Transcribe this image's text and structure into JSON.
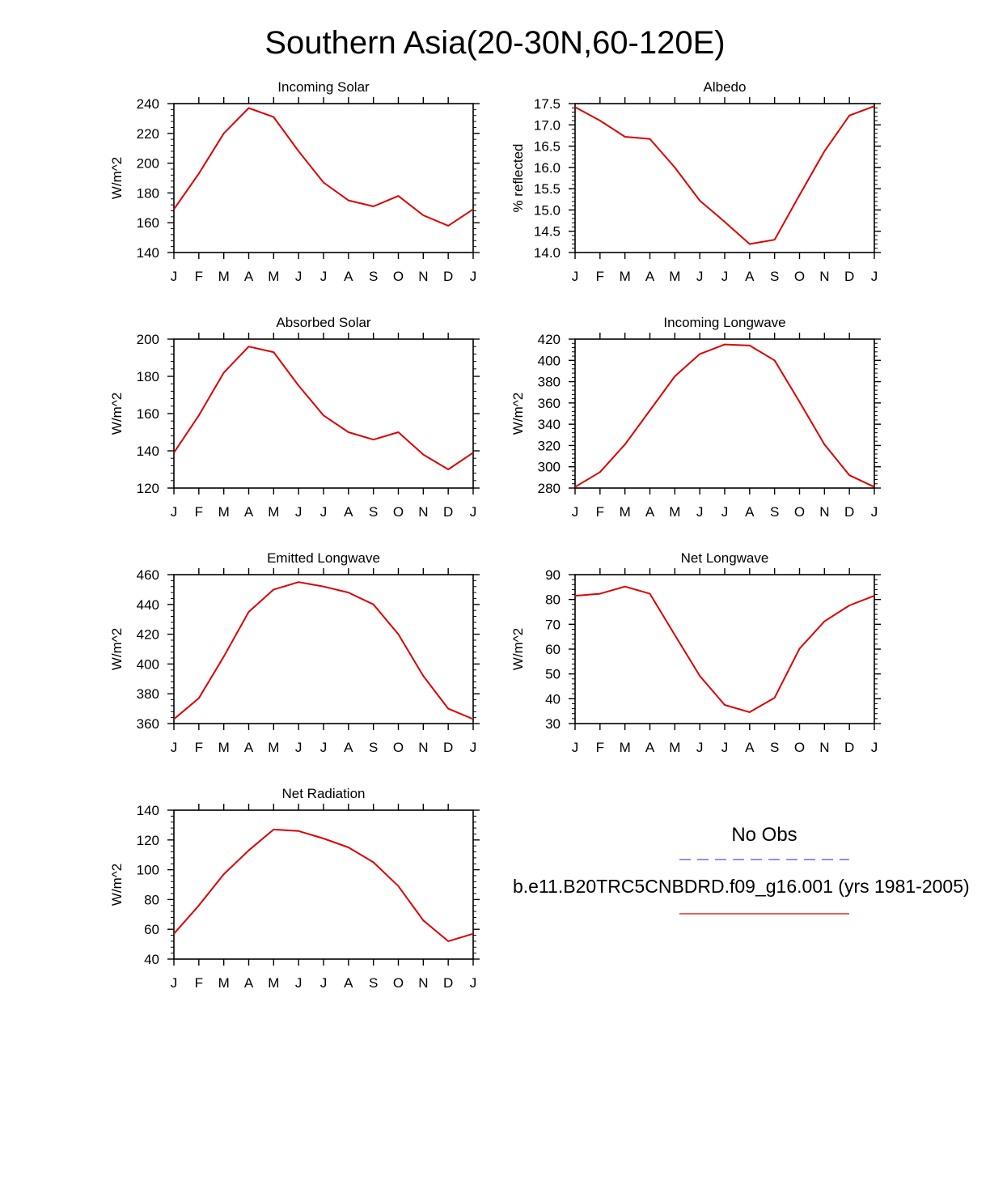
{
  "page_title": "Southern Asia(20-30N,60-120E)",
  "legend": {
    "obs_label": "No Obs",
    "obs_color": "#4a4aff",
    "model_label": "b.e11.B20TRC5CNBDRD.f09_g16.001 (yrs 1981-2005)",
    "model_color": "#dd0000"
  },
  "chart_data": [
    {
      "type": "line",
      "title": "Incoming Solar",
      "ylabel": "W/m^2",
      "xlabel": "",
      "categories": [
        "J",
        "F",
        "M",
        "A",
        "M",
        "J",
        "J",
        "A",
        "S",
        "O",
        "N",
        "D",
        "J"
      ],
      "ylim": [
        140,
        240
      ],
      "yticks": [
        "140",
        "160",
        "180",
        "200",
        "220",
        "240"
      ],
      "series": [
        {
          "name": "b.e11.B20TRC5CNBDRD.f09_g16.001",
          "values": [
            169,
            193,
            220,
            237,
            231,
            208,
            187,
            175,
            171,
            178,
            165,
            158,
            169
          ]
        }
      ]
    },
    {
      "type": "line",
      "title": "Albedo",
      "ylabel": "% reflected",
      "xlabel": "",
      "categories": [
        "J",
        "F",
        "M",
        "A",
        "M",
        "J",
        "J",
        "A",
        "S",
        "O",
        "N",
        "D",
        "J"
      ],
      "ylim": [
        14.0,
        17.5
      ],
      "yticks": [
        "14.0",
        "14.5",
        "15.0",
        "15.5",
        "16.0",
        "16.5",
        "17.0",
        "17.5"
      ],
      "series": [
        {
          "name": "b.e11.B20TRC5CNBDRD.f09_g16.001",
          "values": [
            17.42,
            17.1,
            16.72,
            16.67,
            16.0,
            15.22,
            14.72,
            14.2,
            14.3,
            15.35,
            16.38,
            17.22,
            17.44
          ]
        }
      ]
    },
    {
      "type": "line",
      "title": "Absorbed Solar",
      "ylabel": "W/m^2",
      "xlabel": "",
      "categories": [
        "J",
        "F",
        "M",
        "A",
        "M",
        "J",
        "J",
        "A",
        "S",
        "O",
        "N",
        "D",
        "J"
      ],
      "ylim": [
        120,
        200
      ],
      "yticks": [
        "120",
        "140",
        "160",
        "180",
        "200"
      ],
      "series": [
        {
          "name": "b.e11.B20TRC5CNBDRD.f09_g16.001",
          "values": [
            139,
            159,
            182,
            196,
            193,
            175,
            159,
            150,
            146,
            150,
            138,
            130,
            139
          ]
        }
      ]
    },
    {
      "type": "line",
      "title": "Incoming Longwave",
      "ylabel": "W/m^2",
      "xlabel": "",
      "categories": [
        "J",
        "F",
        "M",
        "A",
        "M",
        "J",
        "J",
        "A",
        "S",
        "O",
        "N",
        "D",
        "J"
      ],
      "ylim": [
        280,
        420
      ],
      "yticks": [
        "280",
        "300",
        "320",
        "340",
        "360",
        "380",
        "400",
        "420"
      ],
      "series": [
        {
          "name": "b.e11.B20TRC5CNBDRD.f09_g16.001",
          "values": [
            281,
            295,
            321,
            353,
            385,
            406,
            415,
            414,
            400,
            361,
            321,
            292,
            281
          ]
        }
      ]
    },
    {
      "type": "line",
      "title": "Emitted Longwave",
      "ylabel": "W/m^2",
      "xlabel": "",
      "categories": [
        "J",
        "F",
        "M",
        "A",
        "M",
        "J",
        "J",
        "A",
        "S",
        "O",
        "N",
        "D",
        "J"
      ],
      "ylim": [
        360,
        460
      ],
      "yticks": [
        "360",
        "380",
        "400",
        "420",
        "440",
        "460"
      ],
      "series": [
        {
          "name": "b.e11.B20TRC5CNBDRD.f09_g16.001",
          "values": [
            363,
            377,
            405,
            435,
            450,
            455,
            452,
            448,
            440,
            420,
            392,
            370,
            363
          ]
        }
      ]
    },
    {
      "type": "line",
      "title": "Net Longwave",
      "ylabel": "W/m^2",
      "xlabel": "",
      "categories": [
        "J",
        "F",
        "M",
        "A",
        "M",
        "J",
        "J",
        "A",
        "S",
        "O",
        "N",
        "D",
        "J"
      ],
      "ylim": [
        30,
        90
      ],
      "yticks": [
        "30",
        "40",
        "50",
        "60",
        "70",
        "80",
        "90"
      ],
      "series": [
        {
          "name": "b.e11.B20TRC5CNBDRD.f09_g16.001",
          "values": [
            81.5,
            82.3,
            85.2,
            82.3,
            65.7,
            49.2,
            37.5,
            34.6,
            40.4,
            60.2,
            71.2,
            77.6,
            81.5
          ]
        }
      ]
    },
    {
      "type": "line",
      "title": "Net Radiation",
      "ylabel": "W/m^2",
      "xlabel": "",
      "categories": [
        "J",
        "F",
        "M",
        "A",
        "M",
        "J",
        "J",
        "A",
        "S",
        "O",
        "N",
        "D",
        "J"
      ],
      "ylim": [
        40,
        140
      ],
      "yticks": [
        "40",
        "60",
        "80",
        "100",
        "120",
        "140"
      ],
      "series": [
        {
          "name": "b.e11.B20TRC5CNBDRD.f09_g16.001",
          "values": [
            57,
            76,
            97,
            113,
            127,
            126,
            121,
            115,
            105,
            89,
            66,
            52,
            57
          ]
        }
      ]
    }
  ]
}
